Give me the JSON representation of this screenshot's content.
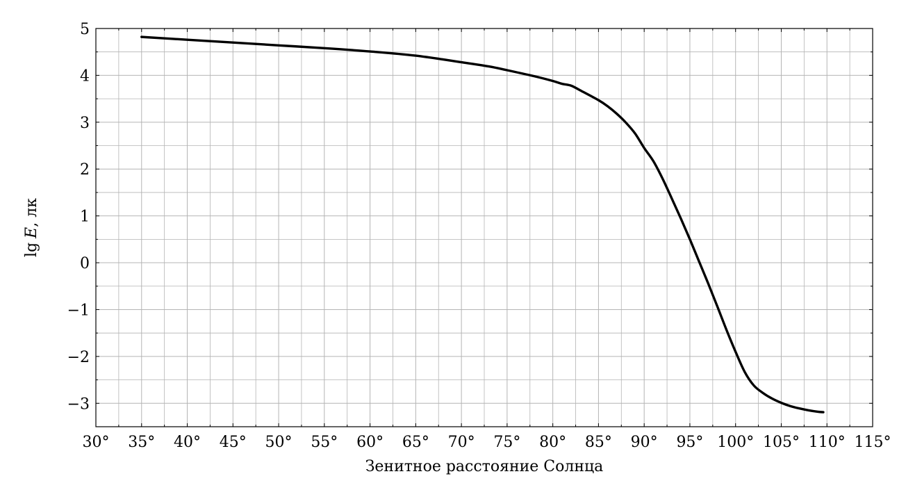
{
  "chart_data": {
    "type": "line",
    "title": "",
    "xlabel": "Зенитное расстояние Солнца",
    "ylabel": "lg E, лк",
    "ylabel_parts": {
      "lg": "lg",
      "E": "E",
      "unit": ", лк"
    },
    "xlim": [
      30,
      115
    ],
    "ylim": [
      -3.5,
      5
    ],
    "grid": true,
    "x_ticks": [
      30,
      35,
      40,
      45,
      50,
      55,
      60,
      65,
      70,
      75,
      80,
      85,
      90,
      95,
      100,
      105,
      110,
      115
    ],
    "x_tick_labels": [
      "30°",
      "35°",
      "40°",
      "45°",
      "50°",
      "55°",
      "60°",
      "65°",
      "70°",
      "75°",
      "80°",
      "85°",
      "90°",
      "95°",
      "100°",
      "105°",
      "110°",
      "115°"
    ],
    "y_ticks": [
      -3,
      -2,
      -1,
      0,
      1,
      2,
      3,
      4,
      5
    ],
    "y_tick_labels": [
      "−3",
      "−2",
      "−1",
      "0",
      "1",
      "2",
      "3",
      "4",
      "5"
    ],
    "series": [
      {
        "color": "#000000",
        "x": [
          35,
          40,
          45,
          50,
          55,
          60,
          65,
          70,
          73,
          75,
          78,
          80,
          81,
          82,
          83,
          85,
          86,
          87,
          88,
          89,
          90,
          91,
          92,
          93,
          94,
          95,
          96,
          97,
          98,
          99,
          100,
          101,
          102,
          103,
          104,
          105,
          106,
          107,
          108,
          109,
          109.6
        ],
        "y": [
          4.82,
          4.76,
          4.7,
          4.64,
          4.58,
          4.51,
          4.42,
          4.28,
          4.19,
          4.11,
          3.98,
          3.88,
          3.82,
          3.78,
          3.68,
          3.47,
          3.34,
          3.18,
          2.99,
          2.76,
          2.45,
          2.17,
          1.8,
          1.38,
          0.95,
          0.5,
          0.03,
          -0.44,
          -0.93,
          -1.43,
          -1.9,
          -2.33,
          -2.62,
          -2.78,
          -2.9,
          -2.99,
          -3.06,
          -3.11,
          -3.15,
          -3.18,
          -3.19
        ]
      }
    ]
  }
}
